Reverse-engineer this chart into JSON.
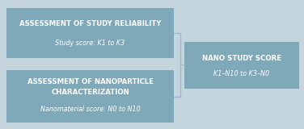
{
  "bg_color": "#c4d5de",
  "box_color": "#7fa8b8",
  "line_color": "#9bbcca",
  "box1_title": "ASSESSMENT OF STUDY RELIABILITY",
  "box1_sub": "Study score: K1 to K3",
  "box2_title1": "ASSESSMENT OF NANOPARTICLE",
  "box2_title2": "CHARACTERIZATION",
  "box2_sub": "Nanomaterial score: N0 to N10",
  "box3_title": "NANO STUDY SCORE",
  "box3_sub": "K1–N10 to K3–N0",
  "title_fontsize": 6.2,
  "sub_fontsize": 5.8
}
